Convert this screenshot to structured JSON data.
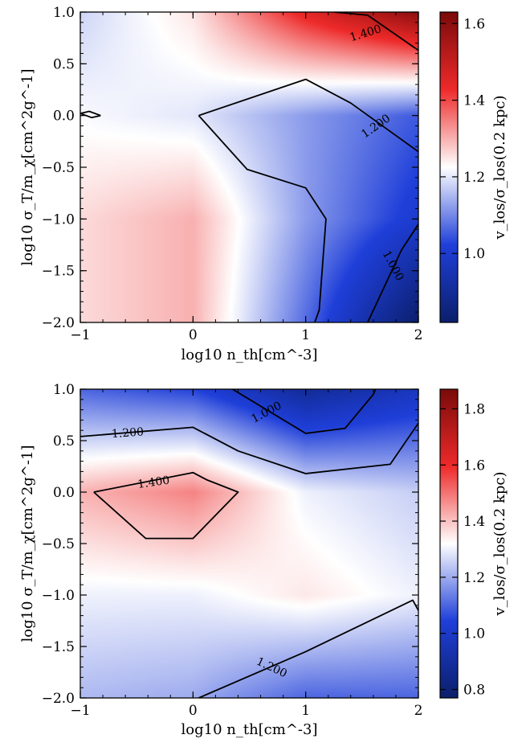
{
  "chart_data": [
    {
      "type": "heatmap",
      "xlabel": "log10 n_th[cm^-3]",
      "ylabel": "log10 σ_T/m_χ[cm^2g^-1]",
      "colorbar_label": "v_los/σ_los(0.2 kpc)",
      "xlim": [
        -1,
        2
      ],
      "ylim": [
        -2,
        1
      ],
      "x_ticks": [
        "−1",
        "0",
        "1",
        "2"
      ],
      "y_ticks": [
        "−2.0",
        "−1.5",
        "−1.0",
        "−0.5",
        "0.0",
        "0.5",
        "1.0"
      ],
      "colorbar_range": [
        0.82,
        1.63
      ],
      "colorbar_ticks": [
        "1.0",
        "1.2",
        "1.4",
        "1.6"
      ],
      "colormap": [
        "#0b1f6b",
        "#1f3fd9",
        "#ffffff",
        "#ee2a2a",
        "#7a0a0a"
      ],
      "grid_x": [
        -1,
        0,
        1,
        2
      ],
      "grid_y": [
        -2,
        -1,
        0,
        1
      ],
      "values": [
        [
          1.26,
          1.3,
          1.07,
          0.82
        ],
        [
          1.26,
          1.3,
          1.12,
          1.0
        ],
        [
          1.22,
          1.2,
          1.12,
          1.05
        ],
        [
          1.18,
          1.25,
          1.45,
          1.6
        ]
      ],
      "contours": [
        {
          "label": "1.400",
          "points": [
            [
              1.25,
              1.0
            ],
            [
              1.55,
              0.97
            ],
            [
              2.0,
              0.63
            ]
          ]
        },
        {
          "label": "1.200",
          "points": [
            [
              0.05,
              0.0
            ],
            [
              1.0,
              0.35
            ],
            [
              1.4,
              0.12
            ],
            [
              2.0,
              -0.35
            ]
          ]
        },
        {
          "label": "1.200",
          "points": [
            [
              0.05,
              0.0
            ],
            [
              0.48,
              -0.52
            ],
            [
              1.0,
              -0.7
            ],
            [
              1.18,
              -1.0
            ],
            [
              1.12,
              -1.88
            ],
            [
              1.08,
              -2.0
            ]
          ]
        },
        {
          "label": "1.000",
          "points": [
            [
              1.55,
              -2.0
            ],
            [
              1.85,
              -1.3
            ],
            [
              2.0,
              -1.05
            ]
          ]
        },
        {
          "label": "",
          "points": [
            [
              -0.82,
              0.0
            ],
            [
              -0.92,
              0.04
            ],
            [
              -1.0,
              0.02
            ],
            [
              -0.9,
              -0.02
            ],
            [
              -0.82,
              0.0
            ]
          ]
        }
      ],
      "contour_labels": [
        {
          "text": "1.400",
          "x": 1.53,
          "y": 0.8,
          "angle": 17
        },
        {
          "text": "1.200",
          "x": 1.62,
          "y": -0.1,
          "angle": 35
        },
        {
          "text": "1.000",
          "x": 1.78,
          "y": -1.45,
          "angle": -62
        }
      ]
    },
    {
      "type": "heatmap",
      "xlabel": "log10 n_th[cm^-3]",
      "ylabel": "log10 σ_T/m_χ[cm^2g^-1]",
      "colorbar_label": "v_los/σ_los(0.2 kpc)",
      "xlim": [
        -1,
        2
      ],
      "ylim": [
        -2,
        1
      ],
      "x_ticks": [
        "−1",
        "0",
        "1",
        "2"
      ],
      "y_ticks": [
        "−2.0",
        "−1.5",
        "−1.0",
        "−0.5",
        "0.0",
        "0.5",
        "1.0"
      ],
      "colorbar_range": [
        0.77,
        1.87
      ],
      "colorbar_ticks": [
        "0.8",
        "1.0",
        "1.2",
        "1.4",
        "1.6",
        "1.8"
      ],
      "colormap": [
        "#0b1f6b",
        "#1f3fd9",
        "#ffffff",
        "#ee2a2a",
        "#7a0a0a"
      ],
      "grid_x": [
        -1,
        0,
        1,
        2
      ],
      "grid_y": [
        -2,
        -1,
        0,
        1
      ],
      "values": [
        [
          1.22,
          1.2,
          1.1,
          1.1
        ],
        [
          1.3,
          1.3,
          1.35,
          1.3
        ],
        [
          1.42,
          1.48,
          1.3,
          1.25
        ],
        [
          1.1,
          1.05,
          0.88,
          0.98
        ]
      ],
      "contours": [
        {
          "label": "1.000",
          "points": [
            [
              0.35,
              1.0
            ],
            [
              1.0,
              0.57
            ],
            [
              1.35,
              0.62
            ],
            [
              1.6,
              0.95
            ],
            [
              1.62,
              1.0
            ]
          ]
        },
        {
          "label": "1.200",
          "points": [
            [
              -1.0,
              0.54
            ],
            [
              0.0,
              0.63
            ],
            [
              0.4,
              0.4
            ],
            [
              1.0,
              0.18
            ],
            [
              1.75,
              0.27
            ],
            [
              2.0,
              0.67
            ]
          ]
        },
        {
          "label": "1.400",
          "points": [
            [
              -0.88,
              0.0
            ],
            [
              -0.42,
              -0.45
            ],
            [
              0.0,
              -0.45
            ],
            [
              0.4,
              0.0
            ],
            [
              0.12,
              0.12
            ],
            [
              0.0,
              0.19
            ],
            [
              -0.88,
              0.0
            ]
          ]
        },
        {
          "label": "1.200",
          "points": [
            [
              0.05,
              -2.0
            ],
            [
              1.0,
              -1.55
            ],
            [
              1.95,
              -1.05
            ],
            [
              2.0,
              -1.15
            ]
          ]
        }
      ],
      "contour_labels": [
        {
          "text": "1.000",
          "x": 0.65,
          "y": 0.78,
          "angle": 28
        },
        {
          "text": "1.200",
          "x": -0.58,
          "y": 0.58,
          "angle": 4
        },
        {
          "text": "1.400",
          "x": -0.35,
          "y": 0.1,
          "angle": 8
        },
        {
          "text": "1.200",
          "x": 0.7,
          "y": -1.7,
          "angle": -25
        }
      ]
    }
  ]
}
